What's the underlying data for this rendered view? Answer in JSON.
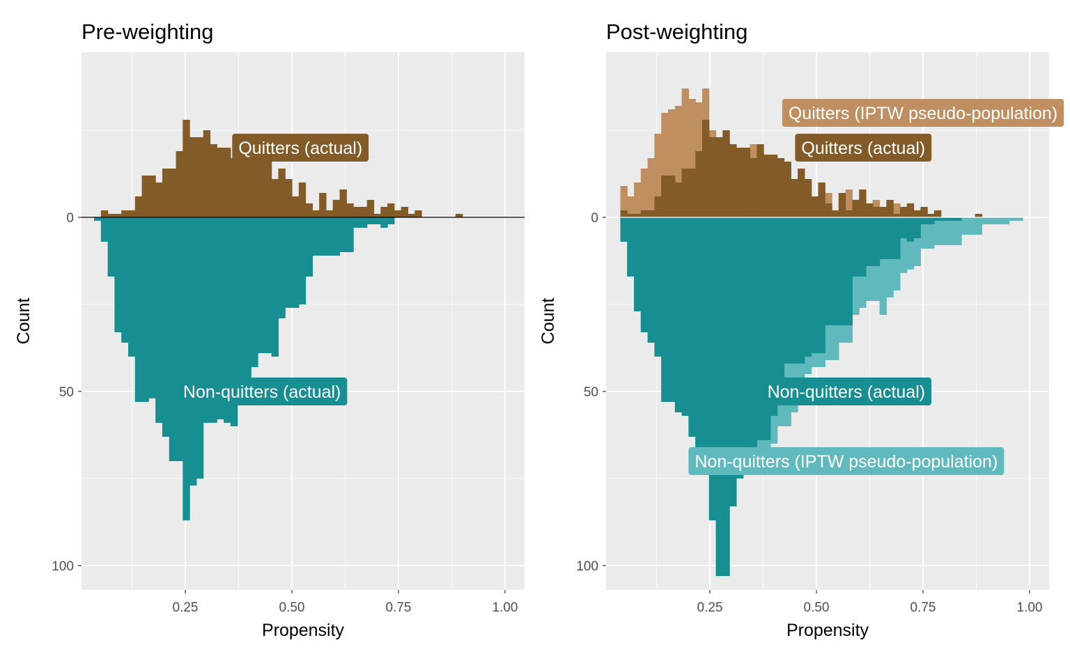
{
  "chart_data": [
    {
      "type": "bar",
      "subtype": "mirrored-histogram",
      "title": "Pre-weighting",
      "xlabel": "Propensity",
      "ylabel": "Count",
      "xlim": [
        0.0,
        1.05
      ],
      "ylim_up": [
        0,
        60
      ],
      "ylim_down": [
        0,
        107
      ],
      "x_ticks": [
        0.25,
        0.5,
        0.75,
        1.0
      ],
      "x_tick_labels": [
        "0.25",
        "0.50",
        "0.75",
        "1.00"
      ],
      "y_ticks": [
        0,
        50,
        100
      ],
      "y_tick_labels": [
        "0",
        "50",
        "100"
      ],
      "bin_width": 0.016,
      "x_start": 0.036,
      "zero_line_color": "#000000",
      "annotations": [
        {
          "label": "Quitters (actual)",
          "x": 0.52,
          "y": 20,
          "side": "up",
          "color": "#835B28"
        },
        {
          "label": "Non-quitters (actual)",
          "x": 0.43,
          "y": 50,
          "side": "down",
          "color": "#178F92"
        }
      ],
      "series": [
        {
          "name": "Quitters (actual)",
          "side": "up",
          "color": "#835B28",
          "values": [
            0,
            2,
            1,
            1,
            2,
            2,
            6,
            12,
            12,
            10,
            14,
            14,
            19,
            28,
            23,
            23,
            25,
            21,
            20,
            20,
            17,
            21,
            18,
            18,
            17,
            16,
            11,
            14,
            11,
            6,
            10,
            4,
            2,
            7,
            2,
            5,
            8,
            4,
            3,
            3,
            5,
            1,
            3,
            4,
            2,
            3,
            1,
            2,
            0,
            0,
            0,
            0,
            0,
            1,
            0,
            0,
            0,
            0,
            0,
            0,
            0,
            0,
            0,
            1,
            0,
            0,
            0,
            0,
            0,
            0,
            0,
            0,
            0,
            0,
            0,
            0,
            0,
            0,
            0,
            0,
            0,
            0,
            0,
            0,
            0,
            0,
            0,
            0,
            0,
            0,
            0,
            0,
            0,
            0,
            0,
            0,
            0,
            0,
            0,
            0,
            0,
            0,
            0,
            0,
            0,
            0
          ]
        },
        {
          "name": "Non-quitters (actual)",
          "side": "down",
          "color": "#178F92",
          "values": [
            1,
            7,
            17,
            33,
            36,
            40,
            53,
            53,
            52,
            59,
            63,
            70,
            70,
            87,
            77,
            75,
            59,
            59,
            58,
            59,
            60,
            50,
            48,
            43,
            39,
            39,
            40,
            29,
            26,
            26,
            25,
            17,
            11,
            11,
            11,
            11,
            10,
            10,
            3,
            3,
            2,
            2,
            3,
            2,
            0,
            0,
            0,
            0,
            0,
            0,
            0,
            0,
            0,
            0,
            0,
            0,
            0,
            0,
            0,
            0,
            0,
            0,
            0,
            0,
            0,
            0,
            0,
            0,
            0,
            0,
            0,
            0,
            0,
            0,
            0,
            0,
            0,
            0,
            0,
            0,
            0,
            0,
            0,
            0,
            0,
            0,
            0,
            0,
            0,
            0,
            0,
            0,
            0,
            0,
            0,
            0,
            0,
            0,
            0,
            0,
            0,
            0,
            0,
            0,
            0,
            0
          ]
        }
      ]
    },
    {
      "type": "bar",
      "subtype": "mirrored-histogram",
      "title": "Post-weighting",
      "xlabel": "Propensity",
      "ylabel": "Count",
      "xlim": [
        0.0,
        1.05
      ],
      "ylim_up": [
        0,
        60
      ],
      "ylim_down": [
        0,
        107
      ],
      "x_ticks": [
        0.25,
        0.5,
        0.75,
        1.0
      ],
      "x_tick_labels": [
        "0.25",
        "0.50",
        "0.75",
        "1.00"
      ],
      "y_ticks": [
        0,
        50,
        100
      ],
      "y_tick_labels": [
        "0",
        "50",
        "100"
      ],
      "bin_width": 0.016,
      "x_start": 0.04,
      "zero_line_color": "#ffffff",
      "annotations": [
        {
          "label": "Quitters (IPTW pseudo-population)",
          "x": 0.75,
          "y": 30,
          "side": "up",
          "color": "#BF8F61"
        },
        {
          "label": "Quitters (actual)",
          "x": 0.61,
          "y": 20,
          "side": "up",
          "color": "#835B28"
        },
        {
          "label": "Non-quitters (actual)",
          "x": 0.57,
          "y": 50,
          "side": "down",
          "color": "#178F92"
        },
        {
          "label": "Non-quitters (IPTW pseudo-population)",
          "x": 0.57,
          "y": 70,
          "side": "down",
          "color": "#60B9BC"
        }
      ],
      "series": [
        {
          "name": "Quitters (IPTW pseudo-population)",
          "side": "up",
          "color": "#BF8F61",
          "values": [
            9,
            6,
            10,
            14,
            17,
            24,
            30,
            31,
            32,
            37,
            34,
            33,
            37,
            25,
            23,
            22,
            20,
            20,
            17,
            21,
            18,
            18,
            16,
            11,
            14,
            11,
            6,
            10,
            4,
            2,
            7,
            2,
            5,
            8,
            4,
            3,
            3,
            5,
            1,
            3,
            4,
            2,
            3,
            1,
            2,
            0,
            0,
            0,
            0,
            0,
            0,
            0,
            0,
            0,
            0,
            0,
            0,
            0,
            0,
            0,
            0,
            0,
            0,
            0,
            0,
            0,
            0,
            0,
            0,
            0,
            0,
            0,
            0,
            0,
            0,
            0,
            0,
            0,
            0,
            0,
            0,
            0,
            0,
            0,
            0,
            0,
            0,
            0,
            0,
            0,
            0,
            0,
            0,
            0,
            0,
            0,
            0,
            0,
            0,
            0,
            0,
            0,
            0,
            0,
            0
          ]
        },
        {
          "name": "Quitters (actual)",
          "side": "up",
          "color": "#835B28",
          "values": [
            2,
            1,
            1,
            2,
            2,
            6,
            12,
            12,
            10,
            14,
            14,
            19,
            28,
            23,
            23,
            25,
            21,
            20,
            20,
            17,
            21,
            18,
            18,
            17,
            16,
            11,
            14,
            11,
            6,
            10,
            4,
            2,
            7,
            2,
            5,
            8,
            4,
            3,
            3,
            5,
            1,
            3,
            4,
            2,
            3,
            1,
            2,
            0,
            0,
            0,
            0,
            0,
            1,
            0,
            0,
            0,
            0,
            0,
            0,
            0,
            0,
            0,
            1,
            0,
            0,
            0,
            0,
            0,
            0,
            0,
            0,
            0,
            0,
            0,
            0,
            0,
            0,
            0,
            0,
            0,
            0,
            0,
            0,
            0,
            0,
            0,
            0,
            0,
            0,
            0,
            0,
            0,
            0,
            0,
            0,
            0,
            0,
            0,
            0,
            0,
            0,
            0,
            0,
            0,
            0
          ]
        },
        {
          "name": "Non-quitters (IPTW pseudo-population)",
          "side": "down",
          "color": "#60B9BC",
          "values": [
            7,
            17,
            27,
            33,
            36,
            40,
            53,
            53,
            56,
            57,
            63,
            70,
            70,
            87,
            89,
            83,
            75,
            75,
            72,
            72,
            71,
            69,
            65,
            60,
            60,
            56,
            50,
            45,
            43,
            43,
            41,
            41,
            36,
            36,
            28,
            26,
            24,
            24,
            28,
            23,
            21,
            16,
            15,
            14,
            9,
            9,
            8,
            8,
            8,
            8,
            5,
            5,
            5,
            2,
            2,
            2,
            2,
            1,
            1,
            0,
            0,
            0,
            0,
            0,
            0,
            0,
            0,
            0,
            0,
            0,
            0,
            0,
            0,
            0,
            0,
            0,
            0,
            0,
            0,
            0,
            0,
            0,
            0,
            0,
            0,
            0,
            0,
            0,
            0,
            0,
            0,
            0,
            0,
            0,
            0,
            0,
            0,
            0,
            0,
            0,
            0,
            0,
            0,
            0,
            0,
            0
          ]
        },
        {
          "name": "Non-quitters (actual)",
          "side": "down",
          "color": "#178F92",
          "values": [
            7,
            17,
            27,
            33,
            36,
            40,
            53,
            53,
            56,
            57,
            63,
            70,
            70,
            87,
            103,
            103,
            83,
            75,
            69,
            69,
            64,
            64,
            57,
            50,
            42,
            42,
            42,
            40,
            39,
            39,
            31,
            31,
            31,
            31,
            17,
            17,
            14,
            14,
            12,
            12,
            12,
            6,
            7,
            6,
            2,
            2,
            1,
            1,
            1,
            1,
            0,
            0,
            0,
            0,
            0,
            0,
            0,
            0,
            0,
            0,
            0,
            0,
            0,
            0,
            0,
            0,
            0,
            0,
            0,
            0,
            0,
            0,
            0,
            0,
            0,
            0,
            0,
            0,
            0,
            0,
            0,
            0,
            0,
            0,
            0,
            0,
            0,
            0,
            0,
            0,
            0,
            0,
            0,
            0,
            0,
            0,
            0,
            0,
            0,
            0,
            0,
            0,
            0,
            0,
            0,
            0
          ]
        }
      ]
    }
  ]
}
